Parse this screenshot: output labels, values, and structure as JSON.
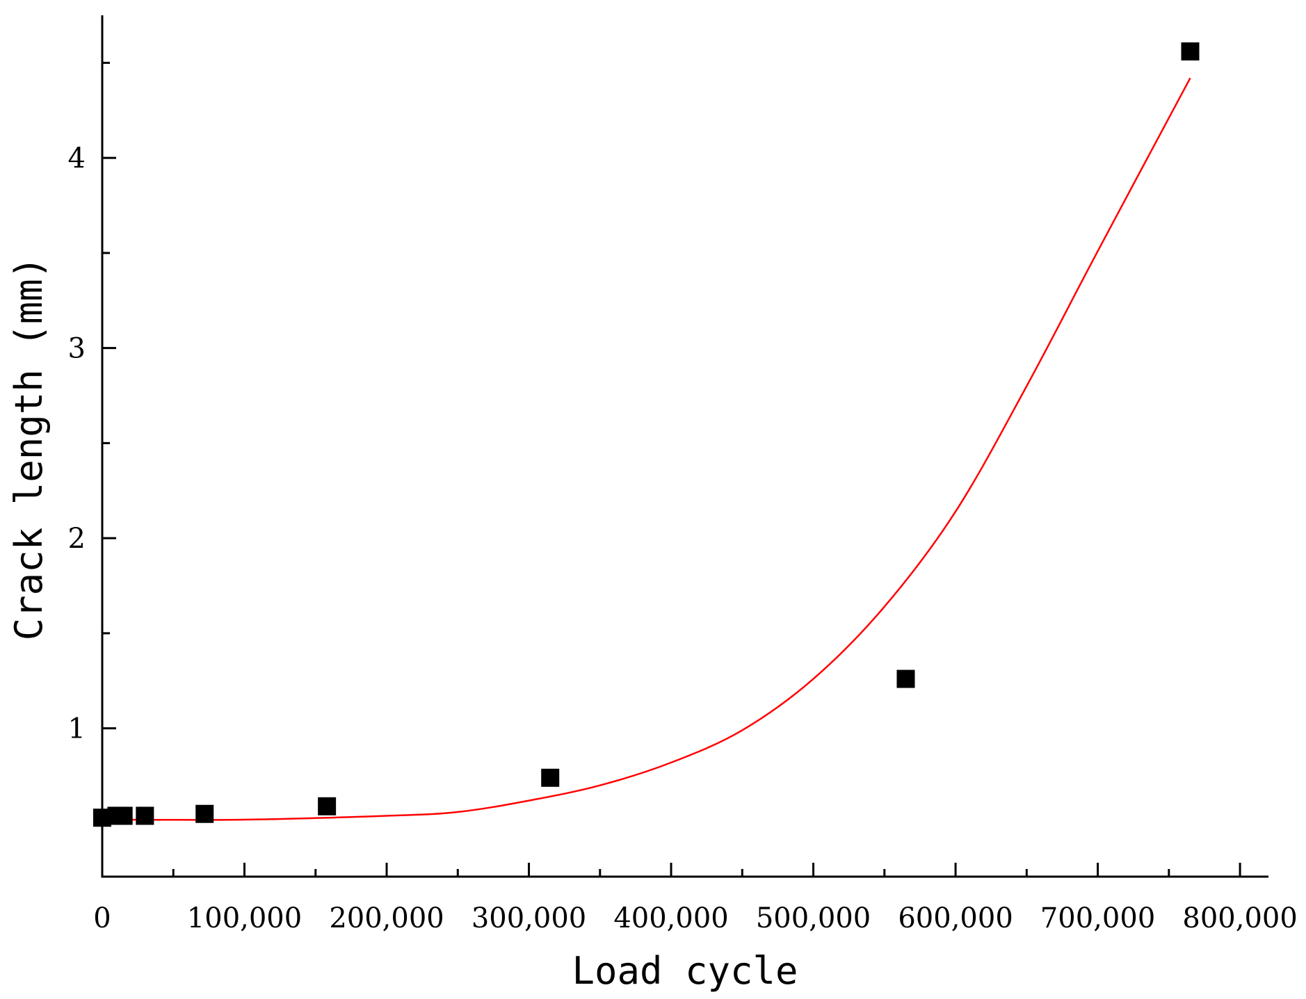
{
  "chart_data": {
    "type": "scatter",
    "xlabel": "Load cycle",
    "ylabel": "Crack length (mm)",
    "xlim": [
      0,
      820000
    ],
    "ylim": [
      0.22,
      4.75
    ],
    "x_ticks": [
      0,
      100000,
      200000,
      300000,
      400000,
      500000,
      600000,
      700000,
      800000
    ],
    "x_tick_labels": [
      "0",
      "100,000",
      "200,000",
      "300,000",
      "400,000",
      "500,000",
      "600,000",
      "700,000",
      "800,000"
    ],
    "y_ticks": [
      1,
      2,
      3,
      4
    ],
    "y_tick_labels": [
      "1",
      "2",
      "3",
      "4"
    ],
    "grid": false,
    "legend": false,
    "series": [
      {
        "kind": "points",
        "marker": "square",
        "color": "#000000",
        "x": [
          0,
          10000,
          15000,
          30000,
          72000,
          158000,
          315000,
          565000,
          765000
        ],
        "y": [
          0.53,
          0.54,
          0.54,
          0.54,
          0.55,
          0.59,
          0.74,
          1.26,
          4.56
        ]
      },
      {
        "kind": "fit-line",
        "color": "#ff0000",
        "x": [
          7000,
          100000,
          200000,
          250000,
          300000,
          350000,
          400000,
          450000,
          500000,
          550000,
          600000,
          650000,
          700000,
          765000
        ],
        "y": [
          0.52,
          0.52,
          0.54,
          0.56,
          0.62,
          0.7,
          0.82,
          0.99,
          1.26,
          1.64,
          2.14,
          2.8,
          3.51,
          4.42
        ]
      }
    ]
  }
}
